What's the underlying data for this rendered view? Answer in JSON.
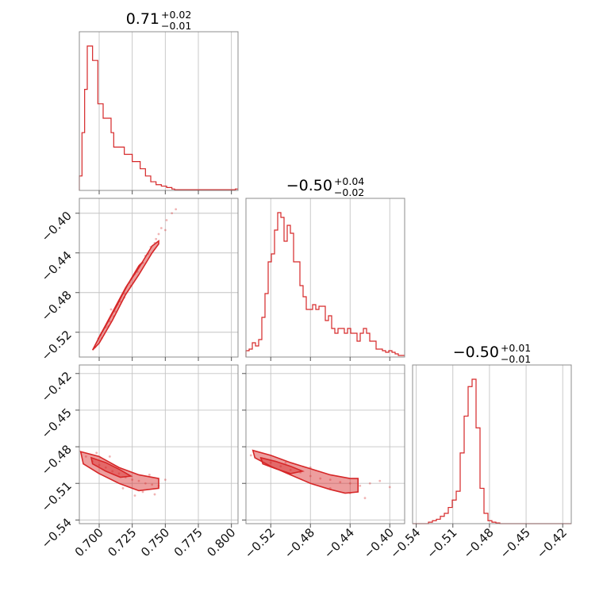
{
  "chart_data": {
    "type": "scatter",
    "kind": "corner-plot",
    "color": "#d62728",
    "grid": true,
    "parameters": [
      {
        "title": {
          "value": "0.71",
          "plus": "+0.02",
          "minus": "−0.01"
        },
        "range": [
          0.685,
          0.805
        ],
        "ticks": [
          0.7,
          0.725,
          0.75,
          0.775,
          0.8
        ],
        "tick_labels": [
          "0.700",
          "0.725",
          "0.750",
          "0.775",
          "0.800"
        ],
        "hist": {
          "x0": 0.685,
          "x1": 0.805,
          "counts": [
            1,
            4,
            7,
            10,
            10,
            9,
            9,
            6,
            6,
            5,
            5,
            5,
            4,
            3,
            3,
            3,
            3,
            2.5,
            2.5,
            2.5,
            2,
            2,
            2,
            1.5,
            1.5,
            1,
            1,
            0.6,
            0.6,
            0.4,
            0.4,
            0.3,
            0.3,
            0.2,
            0.2,
            0.1,
            0.05,
            0.05,
            0.05,
            0.05,
            0.05,
            0.05,
            0.05,
            0.05,
            0.05,
            0.05,
            0.05,
            0.05,
            0.05,
            0.05,
            0.05,
            0.05,
            0.05,
            0.05,
            0.05,
            0.05,
            0.05,
            0.05,
            0.05,
            0.1
          ]
        }
      },
      {
        "title": {
          "value": "−0.50",
          "plus": "+0.04",
          "minus": "−0.02"
        },
        "range": [
          -0.545,
          -0.385
        ],
        "ticks": [
          -0.52,
          -0.48,
          -0.44,
          -0.4
        ],
        "tick_labels": [
          "−0.52",
          "−0.48",
          "−0.44",
          "−0.40"
        ],
        "hist": {
          "x0": -0.545,
          "x1": -0.385,
          "counts": [
            0.4,
            0.5,
            0.9,
            0.7,
            1.1,
            2.5,
            4,
            6,
            6.5,
            8,
            9.1,
            8.8,
            7.3,
            8.3,
            7.8,
            6,
            6,
            4.5,
            3.8,
            3,
            3,
            3.3,
            3,
            3.2,
            3.2,
            2.3,
            2.6,
            1.8,
            1.5,
            1.8,
            1.8,
            1.5,
            1.8,
            1.5,
            1.5,
            1,
            1.5,
            1.8,
            1.5,
            1,
            1,
            0.5,
            0.5,
            0.4,
            0.3,
            0.4,
            0.3,
            0.2,
            0.1,
            0.1
          ]
        }
      },
      {
        "title": {
          "value": "−0.50",
          "plus": "+0.01",
          "minus": "−0.01"
        },
        "range": [
          -0.543,
          -0.413
        ],
        "ticks": [
          -0.54,
          -0.51,
          -0.48,
          -0.45,
          -0.42
        ],
        "tick_labels": [
          "−0.54",
          "−0.51",
          "−0.48",
          "−0.45",
          "−0.42"
        ],
        "hist": {
          "x0": -0.543,
          "x1": -0.413,
          "counts": [
            0,
            0,
            0,
            0,
            0.1,
            0.2,
            0.3,
            0.5,
            0.7,
            1.1,
            1.6,
            2.2,
            4.8,
            7.3,
            9.3,
            9.8,
            6.5,
            2.4,
            0.7,
            0.2,
            0.1,
            0.05,
            0,
            0,
            0,
            0,
            0,
            0,
            0,
            0,
            0,
            0,
            0,
            0,
            0,
            0,
            0,
            0,
            0,
            0
          ]
        }
      }
    ],
    "pairs": [
      {
        "x_param": 0,
        "y_param": 1,
        "y_range": [
          -0.545,
          -0.385
        ],
        "y_ticks": [
          -0.52,
          -0.48,
          -0.44,
          -0.4
        ],
        "y_tick_labels": [
          "−0.52",
          "−0.48",
          "−0.44",
          "−0.40"
        ],
        "points": [
          [
            0.697,
            -0.535
          ],
          [
            0.701,
            -0.523
          ],
          [
            0.705,
            -0.515
          ],
          [
            0.708,
            -0.509
          ],
          [
            0.712,
            -0.499
          ],
          [
            0.716,
            -0.489
          ],
          [
            0.719,
            -0.481
          ],
          [
            0.723,
            -0.47
          ],
          [
            0.727,
            -0.461
          ],
          [
            0.731,
            -0.452
          ],
          [
            0.735,
            -0.443
          ],
          [
            0.739,
            -0.434
          ],
          [
            0.743,
            -0.426
          ],
          [
            0.747,
            -0.415
          ],
          [
            0.751,
            -0.407
          ],
          [
            0.755,
            -0.4
          ],
          [
            0.711,
            -0.504
          ],
          [
            0.714,
            -0.492
          ],
          [
            0.724,
            -0.473
          ],
          [
            0.733,
            -0.45
          ],
          [
            0.742,
            -0.43
          ],
          [
            0.702,
            -0.526
          ],
          [
            0.707,
            -0.514
          ],
          [
            0.729,
            -0.459
          ],
          [
            0.737,
            -0.441
          ],
          [
            0.75,
            -0.417
          ],
          [
            0.758,
            -0.396
          ],
          [
            0.745,
            -0.421
          ],
          [
            0.709,
            -0.497
          ],
          [
            0.719,
            -0.485
          ]
        ],
        "contours": [
          {
            "x": [
              0.695,
              0.7,
              0.71,
              0.72,
              0.73,
              0.74,
              0.745,
              0.745,
              0.74,
              0.73,
              0.72,
              0.71,
              0.7,
              0.695
            ],
            "y": [
              -0.538,
              -0.525,
              -0.5,
              -0.475,
              -0.455,
              -0.433,
              -0.428,
              -0.431,
              -0.44,
              -0.462,
              -0.482,
              -0.508,
              -0.531,
              -0.538
            ]
          },
          {
            "x": [
              0.699,
              0.705,
              0.713,
              0.721,
              0.729,
              0.733,
              0.73,
              0.722,
              0.714,
              0.706,
              0.7
            ],
            "y": [
              -0.527,
              -0.513,
              -0.494,
              -0.473,
              -0.456,
              -0.449,
              -0.453,
              -0.471,
              -0.491,
              -0.511,
              -0.525
            ]
          }
        ]
      },
      {
        "x_param": 0,
        "y_param": 2,
        "y_range": [
          -0.543,
          -0.413
        ],
        "y_ticks": [
          -0.54,
          -0.51,
          -0.48,
          -0.45,
          -0.42
        ],
        "y_tick_labels": [
          "−0.54",
          "−0.51",
          "−0.48",
          "−0.45",
          "−0.42"
        ],
        "points": [
          [
            0.69,
            -0.488
          ],
          [
            0.695,
            -0.492
          ],
          [
            0.7,
            -0.495
          ],
          [
            0.705,
            -0.497
          ],
          [
            0.71,
            -0.5
          ],
          [
            0.715,
            -0.502
          ],
          [
            0.72,
            -0.505
          ],
          [
            0.725,
            -0.507
          ],
          [
            0.73,
            -0.508
          ],
          [
            0.735,
            -0.51
          ],
          [
            0.74,
            -0.511
          ],
          [
            0.745,
            -0.512
          ],
          [
            0.75,
            -0.507
          ],
          [
            0.733,
            -0.517
          ],
          [
            0.727,
            -0.52
          ],
          [
            0.718,
            -0.514
          ],
          [
            0.708,
            -0.488
          ],
          [
            0.698,
            -0.485
          ],
          [
            0.738,
            -0.503
          ],
          [
            0.742,
            -0.519
          ]
        ],
        "contours": [
          {
            "x": [
              0.686,
              0.7,
              0.715,
              0.73,
              0.745,
              0.745,
              0.73,
              0.715,
              0.7,
              0.688
            ],
            "y": [
              -0.484,
              -0.488,
              -0.497,
              -0.503,
              -0.506,
              -0.514,
              -0.516,
              -0.51,
              -0.502,
              -0.494
            ]
          },
          {
            "x": [
              0.694,
              0.705,
              0.716,
              0.724,
              0.716,
              0.705,
              0.695
            ],
            "y": [
              -0.489,
              -0.493,
              -0.499,
              -0.504,
              -0.505,
              -0.5,
              -0.494
            ]
          }
        ]
      },
      {
        "x_param": 1,
        "y_param": 2,
        "y_range": [
          -0.543,
          -0.413
        ],
        "y_ticks": [
          -0.54,
          -0.51,
          -0.48,
          -0.45,
          -0.42
        ],
        "y_tick_labels": [
          "−0.54",
          "−0.51",
          "−0.48",
          "−0.45",
          "−0.42"
        ],
        "points": [
          [
            -0.54,
            -0.487
          ],
          [
            -0.53,
            -0.49
          ],
          [
            -0.52,
            -0.493
          ],
          [
            -0.51,
            -0.496
          ],
          [
            -0.5,
            -0.499
          ],
          [
            -0.49,
            -0.501
          ],
          [
            -0.48,
            -0.504
          ],
          [
            -0.47,
            -0.506
          ],
          [
            -0.46,
            -0.507
          ],
          [
            -0.45,
            -0.509
          ],
          [
            -0.44,
            -0.51
          ],
          [
            -0.43,
            -0.512
          ],
          [
            -0.42,
            -0.51
          ],
          [
            -0.41,
            -0.508
          ],
          [
            -0.44,
            -0.518
          ],
          [
            -0.425,
            -0.522
          ],
          [
            -0.505,
            -0.493
          ],
          [
            -0.46,
            -0.514
          ],
          [
            -0.48,
            -0.497
          ],
          [
            -0.4,
            -0.513
          ]
        ],
        "contours": [
          {
            "x": [
              -0.538,
              -0.52,
              -0.5,
              -0.48,
              -0.46,
              -0.44,
              -0.432,
              -0.432,
              -0.445,
              -0.46,
              -0.48,
              -0.5,
              -0.52,
              -0.536
            ],
            "y": [
              -0.483,
              -0.487,
              -0.493,
              -0.498,
              -0.503,
              -0.506,
              -0.506,
              -0.517,
              -0.518,
              -0.515,
              -0.51,
              -0.503,
              -0.496,
              -0.489
            ]
          },
          {
            "x": [
              -0.53,
              -0.515,
              -0.5,
              -0.488,
              -0.5,
              -0.515,
              -0.528
            ],
            "y": [
              -0.489,
              -0.492,
              -0.496,
              -0.5,
              -0.502,
              -0.498,
              -0.494
            ]
          }
        ]
      }
    ]
  }
}
